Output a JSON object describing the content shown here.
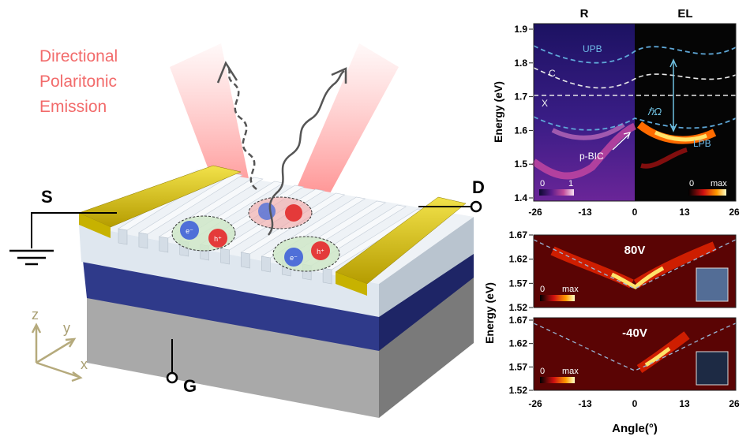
{
  "device": {
    "emission_label": [
      "Directional",
      "Polaritonic",
      "Emission"
    ],
    "terminal_source": "S",
    "terminal_drain": "D",
    "terminal_gate": "G",
    "electron_label": "e⁻",
    "hole_label": "h⁺",
    "axes": {
      "z": "z",
      "y": "y",
      "x": "x"
    },
    "colors": {
      "emission": "#f26b6b",
      "electrode": "#c9b400",
      "top_layer": "#e9eef4",
      "dielectric": "#2d3580",
      "substrate": "#9b9b9b",
      "electron": "#4f6fd8",
      "hole": "#e43a3a"
    }
  },
  "panels": {
    "top": {
      "header_left": "R",
      "header_right": "EL",
      "ylabel": "Energy (eV)",
      "yticks": [
        "1.9",
        "1.8",
        "1.7",
        "1.6",
        "1.5",
        "1.4"
      ],
      "xticks": [
        "-26",
        "-13",
        "0",
        "13",
        "26"
      ],
      "curve_labels": {
        "upb": "UPB",
        "c": "C",
        "x": "X",
        "lpb": "LPB",
        "bic": "p-BIC",
        "rabi": "ℏΩ"
      },
      "colorbar_left": {
        "min": "0",
        "max": "1"
      },
      "colorbar_right": {
        "min": "0",
        "max": "max"
      }
    },
    "middle": {
      "voltage": "80V",
      "yticks": [
        "1.67",
        "1.62",
        "1.57",
        "1.52"
      ],
      "colorbar": {
        "min": "0",
        "max": "max"
      }
    },
    "bottom": {
      "voltage": "-40V",
      "yticks": [
        "1.67",
        "1.62",
        "1.57",
        "1.52"
      ],
      "colorbar": {
        "min": "0",
        "max": "max"
      },
      "xticks": [
        "-26",
        "-13",
        "0",
        "13",
        "26"
      ],
      "xlabel": "Angle(°)"
    },
    "shared_ylabel": "Energy (eV)"
  }
}
